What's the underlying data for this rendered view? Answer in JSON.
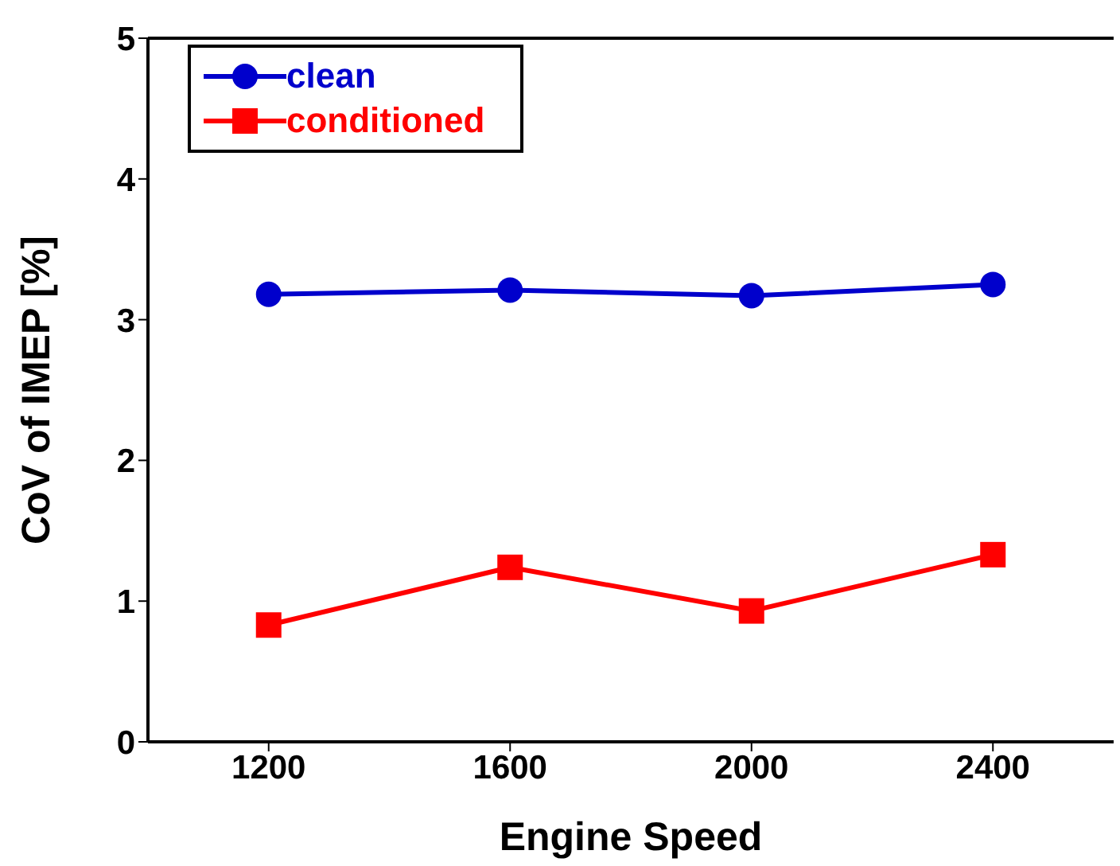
{
  "chart_data": {
    "type": "line",
    "xlabel": "Engine Speed",
    "ylabel": "CoV of IMEP [%]",
    "x": [
      1200,
      1600,
      2000,
      2400
    ],
    "series": [
      {
        "name": "clean",
        "color": "#0000cc",
        "marker": "circle",
        "values": [
          3.18,
          3.21,
          3.17,
          3.25
        ]
      },
      {
        "name": "conditioned",
        "color": "#ff0000",
        "marker": "square",
        "values": [
          0.83,
          1.24,
          0.93,
          1.33
        ]
      }
    ],
    "xlim": [
      1000,
      2600
    ],
    "xticks": [
      1200,
      1600,
      2000,
      2400
    ],
    "ylim": [
      0,
      5
    ],
    "yticks": [
      0,
      1,
      2,
      3,
      4,
      5
    ],
    "grid": false,
    "legend": "top left",
    "line_style": "solid"
  }
}
